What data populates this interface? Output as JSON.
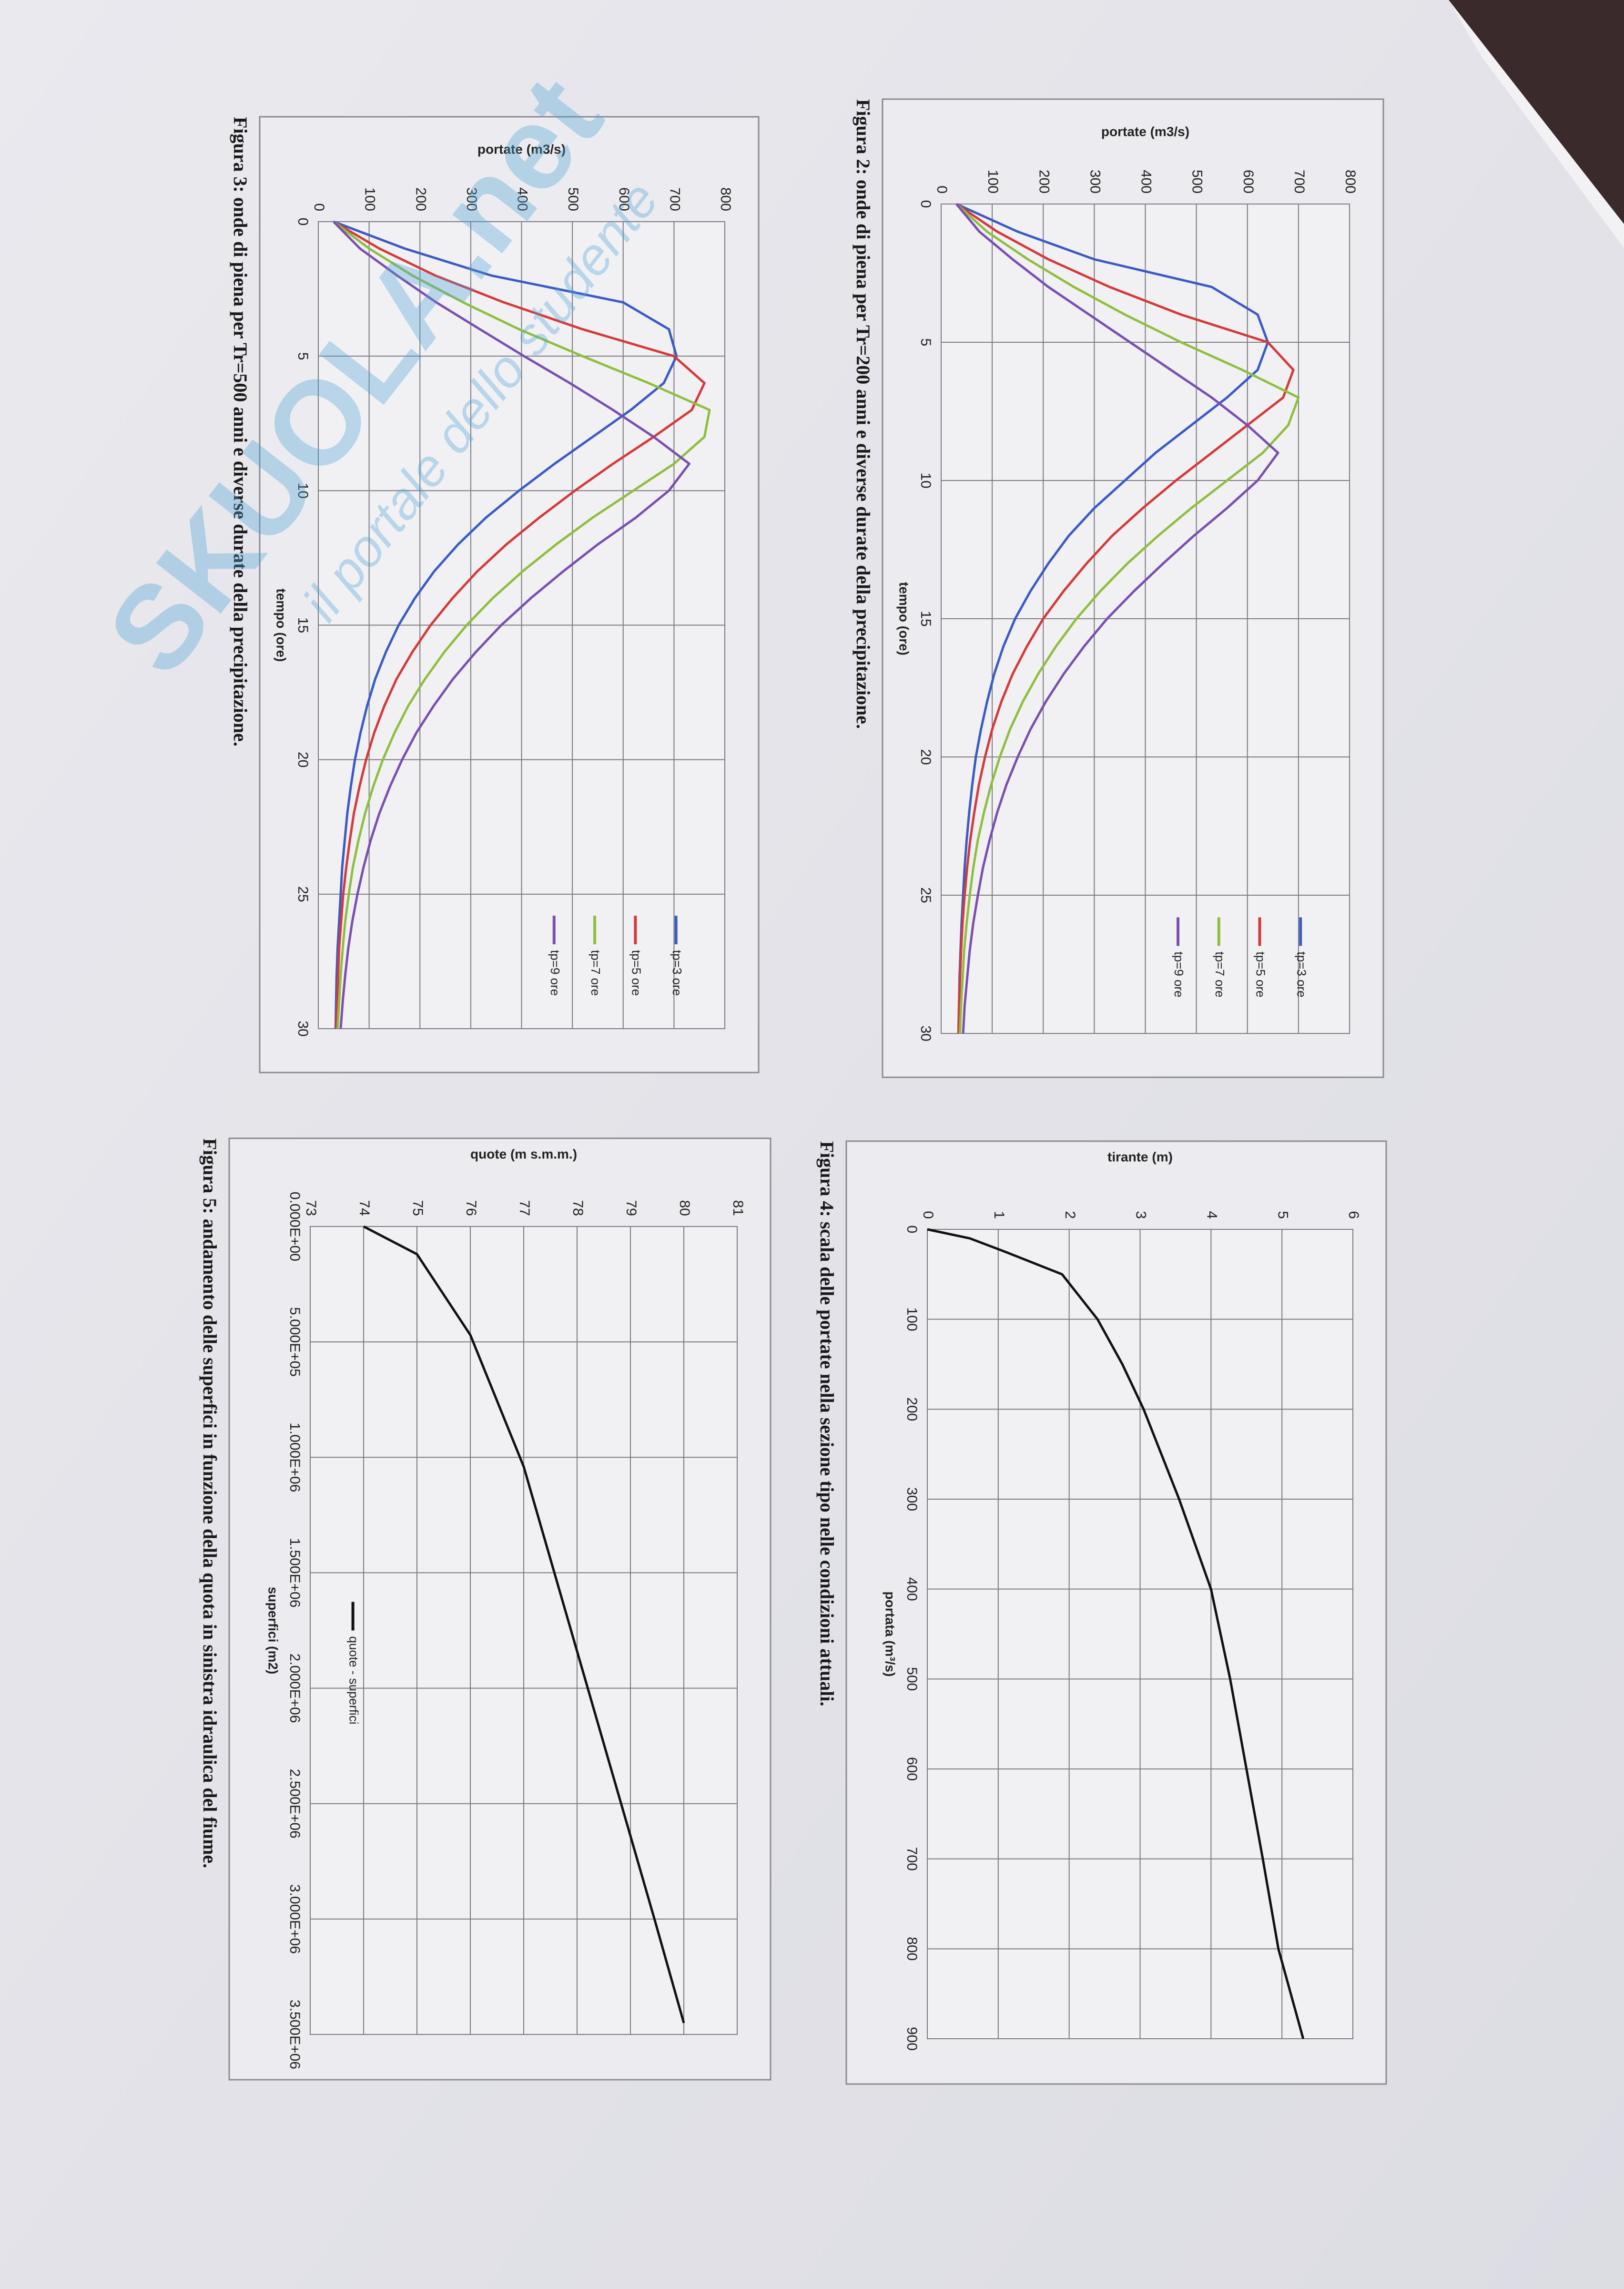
{
  "watermark": {
    "brand": "SKUOLA.net",
    "tagline": "il portale dello studente"
  },
  "chart_data": [
    {
      "type": "line",
      "caption": "Figura 2: onde di piena per Tr=200 anni e diverse durate della precipitazione.",
      "xlabel": "tempo (ore)",
      "ylabel": "portate (m3/s)",
      "x": [
        0,
        1,
        2,
        3,
        4,
        5,
        6,
        7,
        8,
        9,
        10,
        11,
        12,
        13,
        14,
        15,
        16,
        17,
        18,
        19,
        20,
        21,
        22,
        23,
        24,
        25,
        26,
        27,
        28,
        29,
        30
      ],
      "series": [
        {
          "name": "tp=3 ore",
          "color": "#3b5bc4",
          "values": [
            30,
            150,
            300,
            530,
            620,
            640,
            620,
            560,
            490,
            420,
            360,
            300,
            250,
            210,
            175,
            145,
            122,
            104,
            90,
            78,
            68,
            61,
            55,
            50,
            46,
            43,
            40,
            38,
            36,
            35,
            34
          ]
        },
        {
          "name": "tp=5 ore",
          "color": "#d43a3a",
          "values": [
            30,
            110,
            210,
            330,
            470,
            640,
            690,
            670,
            600,
            530,
            460,
            395,
            335,
            285,
            240,
            200,
            168,
            140,
            118,
            100,
            86,
            74,
            65,
            57,
            51,
            46,
            42,
            39,
            37,
            35,
            34
          ]
        },
        {
          "name": "tp=7 ore",
          "color": "#8fbf3f",
          "values": [
            30,
            90,
            170,
            260,
            360,
            470,
            590,
            700,
            680,
            630,
            560,
            490,
            425,
            365,
            312,
            265,
            225,
            190,
            160,
            135,
            115,
            98,
            84,
            72,
            63,
            56,
            50,
            45,
            42,
            39,
            37
          ]
        },
        {
          "name": "tp=9 ore",
          "color": "#7a4fb0",
          "values": [
            30,
            75,
            140,
            210,
            290,
            370,
            450,
            530,
            600,
            660,
            620,
            560,
            495,
            435,
            378,
            325,
            280,
            240,
            205,
            175,
            150,
            128,
            110,
            95,
            82,
            72,
            63,
            56,
            51,
            46,
            43
          ]
        }
      ],
      "xlim": [
        0,
        30
      ],
      "ylim": [
        0,
        800
      ],
      "xticks": [
        0,
        5,
        10,
        15,
        20,
        25,
        30
      ],
      "yticks": [
        0,
        100,
        200,
        300,
        400,
        500,
        600,
        700,
        800
      ],
      "grid": true,
      "legend": "right"
    },
    {
      "type": "line",
      "caption": "Figura 3: onde di piena per Tr=500 anni e diverse durate della precipitazione.",
      "xlabel": "tempo (ore)",
      "ylabel": "portate (m3/s)",
      "x": [
        0,
        1,
        2,
        3,
        4,
        5,
        6,
        7,
        8,
        9,
        10,
        11,
        12,
        13,
        14,
        15,
        16,
        17,
        18,
        19,
        20,
        21,
        22,
        23,
        24,
        25,
        26,
        27,
        28,
        29,
        30
      ],
      "series": [
        {
          "name": "tp=3 ore",
          "color": "#3b5bc4",
          "values": [
            30,
            170,
            340,
            600,
            690,
            705,
            680,
            615,
            540,
            465,
            395,
            330,
            275,
            228,
            190,
            158,
            133,
            112,
            96,
            83,
            72,
            64,
            57,
            52,
            47,
            44,
            41,
            38,
            36,
            35,
            34
          ]
        },
        {
          "name": "tp=5 ore",
          "color": "#d43a3a",
          "values": [
            30,
            120,
            230,
            365,
            520,
            700,
            760,
            735,
            660,
            580,
            505,
            435,
            370,
            313,
            264,
            221,
            185,
            154,
            130,
            110,
            94,
            81,
            70,
            62,
            55,
            49,
            45,
            41,
            39,
            37,
            35
          ]
        },
        {
          "name": "tp=7 ore",
          "color": "#8fbf3f",
          "values": [
            30,
            100,
            185,
            285,
            395,
            520,
            650,
            770,
            760,
            700,
            620,
            540,
            468,
            402,
            343,
            292,
            248,
            210,
            177,
            150,
            127,
            108,
            92,
            79,
            68,
            60,
            53,
            48,
            44,
            41,
            38
          ]
        },
        {
          "name": "tp=9 ore",
          "color": "#7a4fb0",
          "values": [
            30,
            82,
            155,
            232,
            318,
            405,
            495,
            580,
            660,
            730,
            690,
            625,
            550,
            482,
            418,
            360,
            310,
            265,
            227,
            193,
            165,
            141,
            120,
            103,
            89,
            77,
            67,
            59,
            53,
            48,
            44
          ]
        }
      ],
      "xlim": [
        0,
        30
      ],
      "ylim": [
        0,
        800
      ],
      "xticks": [
        0,
        5,
        10,
        15,
        20,
        25,
        30
      ],
      "yticks": [
        0,
        100,
        200,
        300,
        400,
        500,
        600,
        700,
        800
      ],
      "grid": true,
      "legend": "right"
    },
    {
      "type": "line",
      "caption": "Figura 4: scala delle portate nella sezione tipo nelle condizioni attuali.",
      "xlabel": "portata (m³/s)",
      "ylabel": "tirante (m)",
      "x": [
        0,
        10,
        25,
        50,
        100,
        150,
        200,
        300,
        400,
        500,
        600,
        700,
        800,
        900
      ],
      "values": [
        0,
        0.6,
        1.1,
        1.9,
        2.4,
        2.75,
        3.05,
        3.55,
        4.0,
        4.27,
        4.5,
        4.73,
        4.95,
        5.3
      ],
      "color": "#111111",
      "xlim": [
        0,
        900
      ],
      "ylim": [
        0,
        6
      ],
      "xticks": [
        0,
        100,
        200,
        300,
        400,
        500,
        600,
        700,
        800,
        900
      ],
      "yticks": [
        0,
        1,
        2,
        3,
        4,
        5,
        6
      ],
      "grid": true
    },
    {
      "type": "line",
      "caption": "Figura 5: andamento delle superfici in funzione della quota in sinistra idraulica del fiume.",
      "xlabel": "superfici (m2)",
      "ylabel": "quote (m s.m.m.)",
      "x": [
        0,
        120000,
        470000,
        1040000,
        2000000,
        3000000,
        3450000
      ],
      "series": [
        {
          "name": "quote - superfici",
          "color": "#111111",
          "values": [
            74,
            75,
            76,
            77,
            78.2,
            79.45,
            80
          ]
        }
      ],
      "xlim": [
        0,
        3500000
      ],
      "ylim": [
        73,
        81
      ],
      "xticks": [
        {
          "value": 0,
          "label": "0.000E+00"
        },
        {
          "value": 500000,
          "label": "5.000E+05"
        },
        {
          "value": 1000000,
          "label": "1.000E+06"
        },
        {
          "value": 1500000,
          "label": "1.500E+06"
        },
        {
          "value": 2000000,
          "label": "2.000E+06"
        },
        {
          "value": 2500000,
          "label": "2.500E+06"
        },
        {
          "value": 3000000,
          "label": "3.000E+06"
        },
        {
          "value": 3500000,
          "label": "3.500E+06"
        }
      ],
      "yticks": [
        73,
        74,
        75,
        76,
        77,
        78,
        79,
        80,
        81
      ],
      "grid": true,
      "legend": "bottom"
    }
  ]
}
